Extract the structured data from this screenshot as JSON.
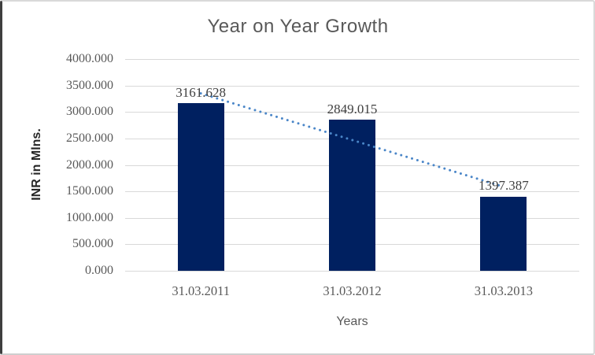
{
  "chart_data": {
    "type": "bar",
    "title": "Year on Year Growth",
    "categories": [
      "31.03.2011",
      "31.03.2012",
      "31.03.2013"
    ],
    "values": [
      3161.628,
      2849.015,
      1397.387
    ],
    "data_labels": [
      "3161.628",
      "2849.015",
      "1397.387"
    ],
    "xlabel": "Years",
    "ylabel": "INR in Mlns.",
    "ylim": [
      0,
      4000
    ],
    "ytick_step": 500,
    "ytick_labels": [
      "4000.000",
      "3500.000",
      "3000.000",
      "2500.000",
      "2000.000",
      "1500.000",
      "1000.000",
      "500.000",
      "0.000"
    ],
    "grid": true,
    "legend": false,
    "bar_color": "#002060",
    "gridline_color": "#d9d9d9",
    "title_color": "#595959",
    "axis_label_color": "#595959",
    "data_label_color": "#3f3f3f",
    "trendline": {
      "type": "linear",
      "style": "dotted",
      "color": "#4a86c8"
    }
  }
}
